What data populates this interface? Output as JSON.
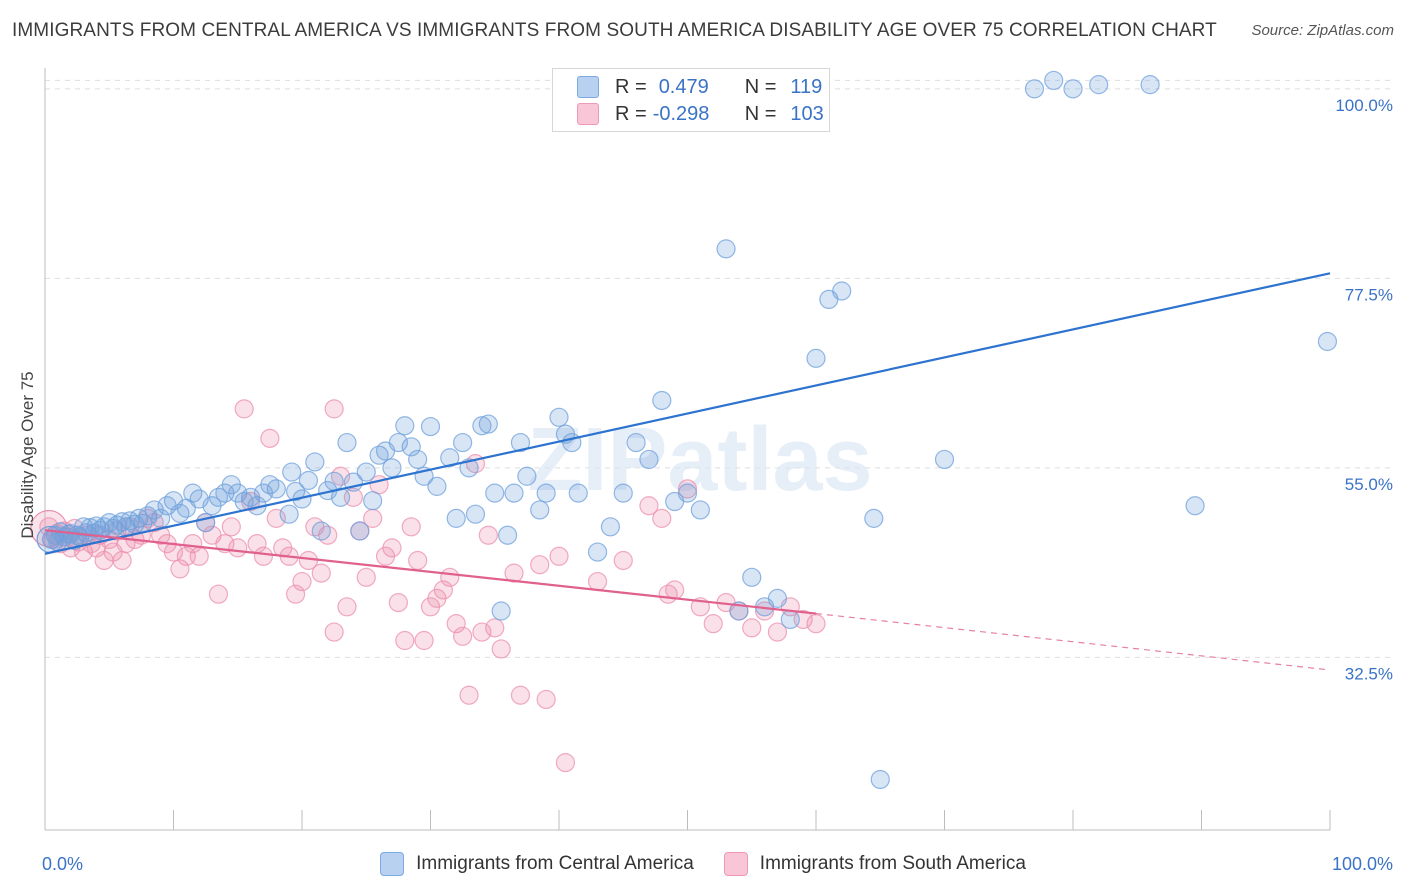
{
  "title": "IMMIGRANTS FROM CENTRAL AMERICA VS IMMIGRANTS FROM SOUTH AMERICA DISABILITY AGE OVER 75 CORRELATION CHART",
  "source": "Source: ZipAtlas.com",
  "watermark": "ZIPatlas",
  "colors": {
    "blue": "#6fa0dc",
    "blue_line": "#2d73d0",
    "pink": "#ec8fae",
    "pink_line": "#e0608e",
    "axis_text": "#3a73c6",
    "grid": "#dedede"
  },
  "legend": {
    "r_label": "R =",
    "n_label": "N =",
    "central": {
      "r": "0.479",
      "n": "119"
    },
    "south": {
      "r": "-0.298",
      "n": "103"
    }
  },
  "bottom_legend": {
    "central": "Immigrants from Central America",
    "south": "Immigrants from South America"
  },
  "chart_data": {
    "type": "scatter",
    "xlabel": "",
    "ylabel": "Disability Age Over 75",
    "xlim": [
      0,
      100
    ],
    "ylim": [
      12,
      102
    ],
    "x_tick_labels": [
      {
        "value": 0,
        "label": "0.0%"
      },
      {
        "value": 100,
        "label": "100.0%"
      }
    ],
    "y_tick_labels": [
      {
        "value": 32.5,
        "label": "32.5%"
      },
      {
        "value": 55.0,
        "label": "55.0%"
      },
      {
        "value": 77.5,
        "label": "77.5%"
      },
      {
        "value": 100.0,
        "label": "100.0%"
      }
    ],
    "series": [
      {
        "name": "Immigrants from Central America",
        "r": 0.479,
        "n": 119,
        "trend": {
          "x0": 0,
          "y0": 44.8,
          "x1": 100,
          "y1": 78.1
        },
        "points": [
          [
            0.5,
            46.5
          ],
          [
            0.8,
            47.0
          ],
          [
            1.0,
            46.2
          ],
          [
            1.2,
            47.4
          ],
          [
            1.5,
            46.8
          ],
          [
            1.8,
            47.1
          ],
          [
            2.0,
            47.2
          ],
          [
            2.3,
            46.4
          ],
          [
            2.5,
            47.0
          ],
          [
            2.7,
            46.8
          ],
          [
            3.0,
            48.0
          ],
          [
            3.2,
            47.3
          ],
          [
            3.5,
            47.9
          ],
          [
            3.8,
            47.2
          ],
          [
            4.0,
            48.1
          ],
          [
            4.3,
            47.6
          ],
          [
            4.6,
            48.0
          ],
          [
            5.0,
            48.5
          ],
          [
            5.3,
            47.8
          ],
          [
            5.6,
            48.2
          ],
          [
            6.0,
            48.6
          ],
          [
            6.3,
            48.0
          ],
          [
            6.6,
            48.7
          ],
          [
            7.0,
            48.3
          ],
          [
            7.3,
            49.0
          ],
          [
            7.6,
            48.4
          ],
          [
            8.0,
            49.3
          ],
          [
            8.5,
            50.0
          ],
          [
            9.0,
            49.0
          ],
          [
            9.5,
            50.5
          ],
          [
            10.0,
            51.1
          ],
          [
            10.5,
            49.6
          ],
          [
            11.0,
            50.2
          ],
          [
            11.5,
            52.0
          ],
          [
            12.0,
            51.3
          ],
          [
            12.5,
            48.5
          ],
          [
            13.0,
            50.5
          ],
          [
            13.5,
            51.5
          ],
          [
            14.0,
            52.0
          ],
          [
            14.5,
            53.0
          ],
          [
            15.0,
            52.0
          ],
          [
            15.5,
            51.0
          ],
          [
            16.0,
            51.5
          ],
          [
            16.5,
            50.5
          ],
          [
            17.0,
            52.0
          ],
          [
            17.5,
            53.0
          ],
          [
            18.0,
            52.5
          ],
          [
            19.0,
            49.5
          ],
          [
            19.2,
            54.5
          ],
          [
            19.5,
            52.2
          ],
          [
            20.0,
            51.3
          ],
          [
            20.5,
            53.5
          ],
          [
            21.0,
            55.7
          ],
          [
            21.5,
            47.5
          ],
          [
            22.0,
            52.3
          ],
          [
            22.5,
            53.4
          ],
          [
            23.0,
            51.5
          ],
          [
            23.5,
            58.0
          ],
          [
            24.0,
            53.3
          ],
          [
            24.5,
            47.5
          ],
          [
            25.0,
            54.5
          ],
          [
            25.5,
            51.1
          ],
          [
            26.0,
            56.5
          ],
          [
            26.5,
            57.0
          ],
          [
            27.0,
            55.0
          ],
          [
            27.5,
            58.0
          ],
          [
            28.0,
            60.0
          ],
          [
            28.5,
            57.5
          ],
          [
            29.0,
            56.0
          ],
          [
            29.5,
            54.0
          ],
          [
            30.0,
            59.9
          ],
          [
            30.5,
            52.8
          ],
          [
            31.5,
            56.2
          ],
          [
            32.0,
            49.0
          ],
          [
            32.5,
            58.0
          ],
          [
            33.0,
            55.0
          ],
          [
            33.5,
            49.5
          ],
          [
            34.0,
            60.0
          ],
          [
            34.5,
            60.2
          ],
          [
            35.0,
            52.0
          ],
          [
            35.5,
            38.0
          ],
          [
            36.0,
            47.0
          ],
          [
            36.5,
            52.0
          ],
          [
            37.0,
            58.0
          ],
          [
            37.5,
            54.0
          ],
          [
            38.5,
            50.0
          ],
          [
            39.0,
            52.0
          ],
          [
            40.0,
            61.0
          ],
          [
            40.5,
            59.0
          ],
          [
            41.0,
            58.0
          ],
          [
            41.5,
            52.0
          ],
          [
            43.0,
            45.0
          ],
          [
            44.0,
            48.0
          ],
          [
            45.0,
            52.0
          ],
          [
            46.0,
            58.0
          ],
          [
            47.0,
            56.0
          ],
          [
            48.0,
            63.0
          ],
          [
            49.0,
            51.0
          ],
          [
            50.0,
            52.0
          ],
          [
            51.0,
            50.0
          ],
          [
            53.0,
            81.0
          ],
          [
            54.0,
            38.0
          ],
          [
            55.0,
            42.0
          ],
          [
            56.0,
            38.5
          ],
          [
            57.0,
            39.5
          ],
          [
            58.0,
            37.0
          ],
          [
            60.0,
            68.0
          ],
          [
            61.0,
            75.0
          ],
          [
            62.0,
            76.0
          ],
          [
            64.5,
            49.0
          ],
          [
            65.0,
            18.0
          ],
          [
            70.0,
            56.0
          ],
          [
            77.0,
            100.0
          ],
          [
            78.5,
            101.0
          ],
          [
            80.0,
            100.0
          ],
          [
            82.0,
            100.5
          ],
          [
            86.0,
            100.5
          ],
          [
            89.5,
            50.5
          ],
          [
            99.8,
            70.0
          ]
        ]
      },
      {
        "name": "Immigrants from South America",
        "r": -0.298,
        "n": 103,
        "trend": {
          "x0": 0,
          "y0": 47.6,
          "x1": 60,
          "y1": 37.7
        },
        "trend_dashed": {
          "x0": 60,
          "y0": 37.7,
          "x1": 100,
          "y1": 31.0
        },
        "points": [
          [
            0.3,
            48.0
          ],
          [
            0.6,
            46.5
          ],
          [
            0.9,
            47.2
          ],
          [
            1.2,
            46.0
          ],
          [
            1.5,
            47.5
          ],
          [
            1.8,
            46.8
          ],
          [
            2.0,
            45.5
          ],
          [
            2.3,
            47.8
          ],
          [
            2.6,
            46.2
          ],
          [
            3.0,
            45.0
          ],
          [
            3.3,
            47.0
          ],
          [
            3.6,
            46.0
          ],
          [
            4.0,
            45.5
          ],
          [
            4.3,
            47.0
          ],
          [
            4.6,
            44.0
          ],
          [
            5.0,
            46.5
          ],
          [
            5.3,
            45.0
          ],
          [
            5.6,
            47.5
          ],
          [
            6.0,
            44.0
          ],
          [
            6.3,
            46.0
          ],
          [
            6.6,
            48.0
          ],
          [
            7.0,
            46.5
          ],
          [
            7.5,
            47.0
          ],
          [
            8.0,
            49.0
          ],
          [
            8.5,
            48.5
          ],
          [
            9.0,
            47.0
          ],
          [
            9.5,
            46.0
          ],
          [
            10.0,
            45.0
          ],
          [
            10.5,
            43.0
          ],
          [
            11.0,
            44.5
          ],
          [
            11.5,
            46.0
          ],
          [
            12.0,
            44.5
          ],
          [
            12.5,
            48.5
          ],
          [
            13.0,
            47.0
          ],
          [
            13.5,
            40.0
          ],
          [
            14.0,
            46.0
          ],
          [
            14.5,
            48.0
          ],
          [
            15.0,
            45.5
          ],
          [
            15.5,
            62.0
          ],
          [
            16.0,
            51.0
          ],
          [
            16.5,
            46.0
          ],
          [
            17.0,
            44.5
          ],
          [
            17.5,
            58.5
          ],
          [
            18.0,
            49.0
          ],
          [
            18.5,
            45.5
          ],
          [
            19.0,
            44.5
          ],
          [
            19.5,
            40.0
          ],
          [
            20.0,
            41.5
          ],
          [
            20.5,
            44.0
          ],
          [
            21.0,
            48.0
          ],
          [
            21.5,
            42.5
          ],
          [
            22.0,
            47.0
          ],
          [
            22.5,
            35.5
          ],
          [
            23.0,
            54.0
          ],
          [
            23.5,
            38.5
          ],
          [
            24.0,
            51.5
          ],
          [
            24.5,
            47.5
          ],
          [
            25.0,
            42.0
          ],
          [
            25.5,
            49.0
          ],
          [
            26.0,
            53.0
          ],
          [
            26.5,
            44.5
          ],
          [
            27.0,
            45.5
          ],
          [
            27.5,
            39.0
          ],
          [
            28.0,
            34.5
          ],
          [
            28.5,
            48.0
          ],
          [
            29.0,
            44.0
          ],
          [
            29.5,
            34.5
          ],
          [
            30.0,
            38.5
          ],
          [
            30.5,
            39.5
          ],
          [
            31.0,
            40.5
          ],
          [
            31.5,
            42.0
          ],
          [
            32.0,
            36.5
          ],
          [
            32.5,
            35.0
          ],
          [
            33.0,
            28.0
          ],
          [
            33.5,
            55.5
          ],
          [
            34.0,
            35.5
          ],
          [
            34.5,
            47.0
          ],
          [
            35.0,
            36.0
          ],
          [
            35.5,
            33.5
          ],
          [
            36.5,
            42.5
          ],
          [
            37.0,
            28.0
          ],
          [
            38.5,
            43.5
          ],
          [
            39.0,
            27.5
          ],
          [
            40.0,
            44.5
          ],
          [
            40.5,
            20.0
          ],
          [
            43.0,
            41.5
          ],
          [
            45.0,
            44.0
          ],
          [
            47.0,
            50.5
          ],
          [
            48.0,
            49.0
          ],
          [
            48.5,
            40.0
          ],
          [
            49.0,
            40.5
          ],
          [
            50.0,
            52.5
          ],
          [
            51.0,
            38.5
          ],
          [
            52.0,
            36.5
          ],
          [
            53.0,
            39.0
          ],
          [
            54.0,
            38.0
          ],
          [
            55.0,
            36.0
          ],
          [
            56.0,
            38.0
          ],
          [
            57.0,
            35.5
          ],
          [
            58.0,
            38.5
          ],
          [
            59.0,
            37.0
          ],
          [
            60.0,
            36.5
          ],
          [
            22.5,
            62.0
          ]
        ]
      }
    ]
  }
}
